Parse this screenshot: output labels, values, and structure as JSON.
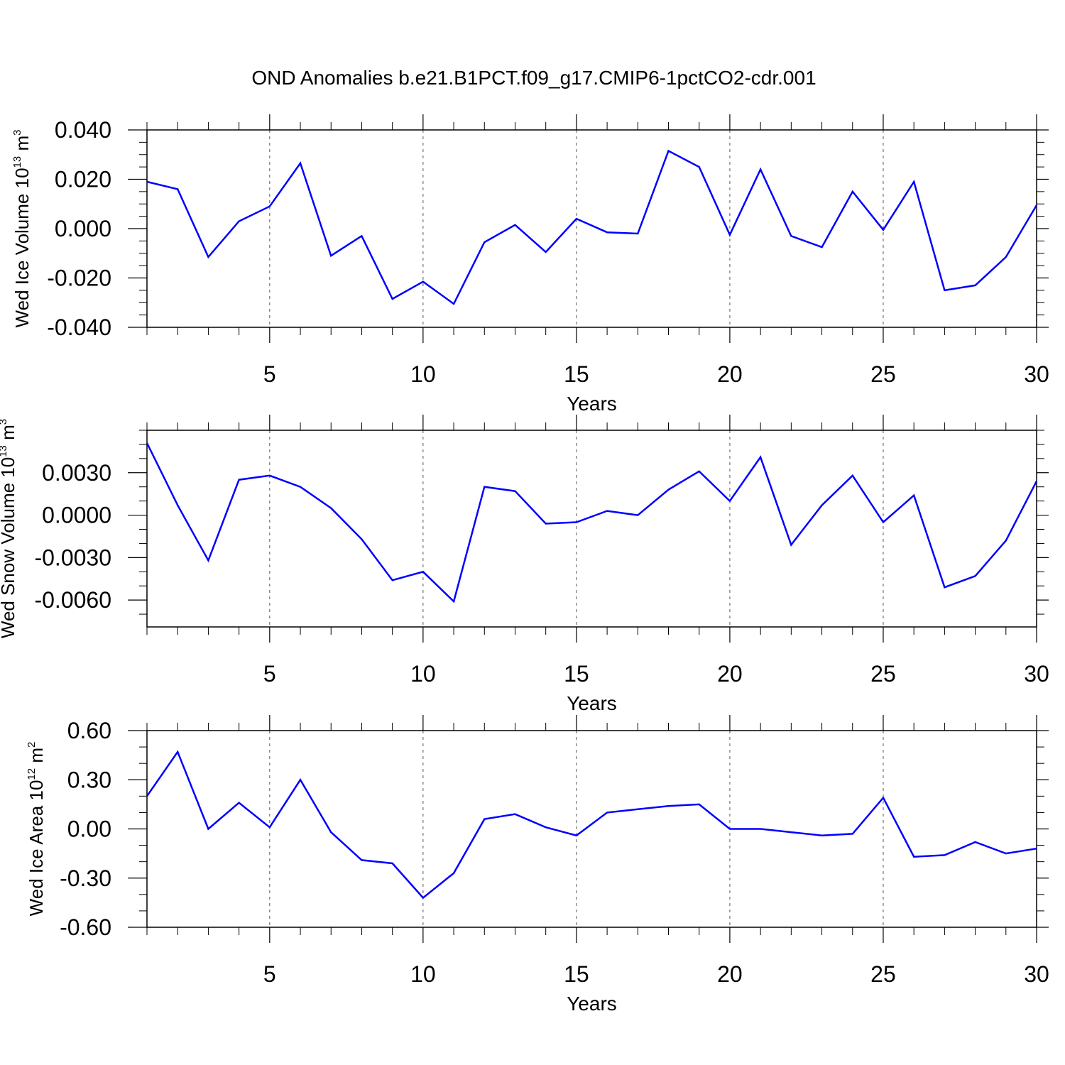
{
  "title": "OND Anomalies b.e21.B1PCT.f09_g17.CMIP6-1pctCO2-cdr.001",
  "colors": {
    "line": "#0000ff",
    "axis": "#000000",
    "grid": "#555555",
    "background": "#ffffff"
  },
  "chart_data": [
    {
      "type": "line",
      "ylabel": {
        "text": "Wed Ice Volume 10",
        "sup": "13",
        "unit": " m",
        "unit_sup": "3"
      },
      "xlabel": "Years",
      "xlim": [
        1,
        30
      ],
      "ylim": [
        -0.04,
        0.04
      ],
      "xticks": [
        5,
        10,
        15,
        20,
        25,
        30
      ],
      "xtick_labels": [
        "5",
        "10",
        "15",
        "20",
        "25",
        "30"
      ],
      "yticks": [
        -0.04,
        -0.02,
        0.0,
        0.02,
        0.04
      ],
      "ytick_labels": [
        "-0.040",
        "-0.020",
        "0.000",
        "0.020",
        "0.040"
      ],
      "x_minor_step": 1,
      "y_minor_step": 0.005,
      "grid": "vertical dashed at major x ticks",
      "series": [
        {
          "name": "Wed Ice Volume",
          "x": [
            1,
            2,
            3,
            4,
            5,
            6,
            7,
            8,
            9,
            10,
            11,
            12,
            13,
            14,
            15,
            16,
            17,
            18,
            19,
            20,
            21,
            22,
            23,
            24,
            25,
            26,
            27,
            28,
            29,
            30
          ],
          "values": [
            0.019,
            0.016,
            -0.0115,
            0.003,
            0.009,
            0.0265,
            -0.011,
            -0.003,
            -0.0285,
            -0.0215,
            -0.0305,
            -0.0055,
            0.0015,
            -0.0095,
            0.004,
            -0.0015,
            -0.002,
            0.0315,
            0.025,
            -0.0025,
            0.024,
            -0.003,
            -0.0075,
            0.015,
            -0.0005,
            0.019,
            -0.025,
            -0.023,
            -0.0115,
            0.0095
          ]
        }
      ]
    },
    {
      "type": "line",
      "ylabel": {
        "text": "Wed Snow Volume 10",
        "sup": "13",
        "unit": " m",
        "unit_sup": "3"
      },
      "xlabel": "Years",
      "xlim": [
        1,
        30
      ],
      "ylim": [
        -0.0079,
        0.006
      ],
      "xticks": [
        5,
        10,
        15,
        20,
        25,
        30
      ],
      "xtick_labels": [
        "5",
        "10",
        "15",
        "20",
        "25",
        "30"
      ],
      "yticks": [
        -0.006,
        -0.003,
        0.0,
        0.003
      ],
      "ytick_labels": [
        "-0.0060",
        "-0.0030",
        "0.0000",
        "0.0030"
      ],
      "x_minor_step": 1,
      "y_minor_step": 0.001,
      "grid": "vertical dashed at major x ticks",
      "series": [
        {
          "name": "Wed Snow Volume",
          "x": [
            1,
            2,
            3,
            4,
            5,
            6,
            7,
            8,
            9,
            10,
            11,
            12,
            13,
            14,
            15,
            16,
            17,
            18,
            19,
            20,
            21,
            22,
            23,
            24,
            25,
            26,
            27,
            28,
            29,
            30
          ],
          "values": [
            0.0051,
            0.0007,
            -0.0032,
            0.0025,
            0.0028,
            0.002,
            0.0005,
            -0.0017,
            -0.0046,
            -0.004,
            -0.0061,
            0.002,
            0.0017,
            -0.0006,
            -0.0005,
            0.0003,
            0.0,
            0.0018,
            0.0031,
            0.001,
            0.0041,
            -0.0021,
            0.0007,
            0.0028,
            -0.0005,
            0.0014,
            -0.0051,
            -0.0043,
            -0.0018,
            0.0024
          ]
        }
      ]
    },
    {
      "type": "line",
      "ylabel": {
        "text": "Wed Ice Area 10",
        "sup": "12",
        "unit": " m",
        "unit_sup": "2"
      },
      "xlabel": "Years",
      "xlim": [
        1,
        30
      ],
      "ylim": [
        -0.6,
        0.6
      ],
      "xticks": [
        5,
        10,
        15,
        20,
        25,
        30
      ],
      "xtick_labels": [
        "5",
        "10",
        "15",
        "20",
        "25",
        "30"
      ],
      "yticks": [
        -0.6,
        -0.3,
        0.0,
        0.3,
        0.6
      ],
      "ytick_labels": [
        "-0.60",
        "-0.30",
        "0.00",
        "0.30",
        "0.60"
      ],
      "x_minor_step": 1,
      "y_minor_step": 0.1,
      "grid": "vertical dashed at major x ticks",
      "series": [
        {
          "name": "Wed Ice Area",
          "x": [
            1,
            2,
            3,
            4,
            5,
            6,
            7,
            8,
            9,
            10,
            11,
            12,
            13,
            14,
            15,
            16,
            17,
            18,
            19,
            20,
            21,
            22,
            23,
            24,
            25,
            26,
            27,
            28,
            29,
            30
          ],
          "values": [
            0.2,
            0.47,
            0.0,
            0.16,
            0.01,
            0.3,
            -0.02,
            -0.19,
            -0.21,
            -0.42,
            -0.27,
            0.06,
            0.09,
            0.01,
            -0.04,
            0.1,
            0.12,
            0.14,
            0.15,
            0.0,
            0.0,
            -0.02,
            -0.04,
            -0.03,
            0.19,
            -0.17,
            -0.16,
            -0.08,
            -0.15,
            -0.12
          ]
        }
      ]
    }
  ]
}
